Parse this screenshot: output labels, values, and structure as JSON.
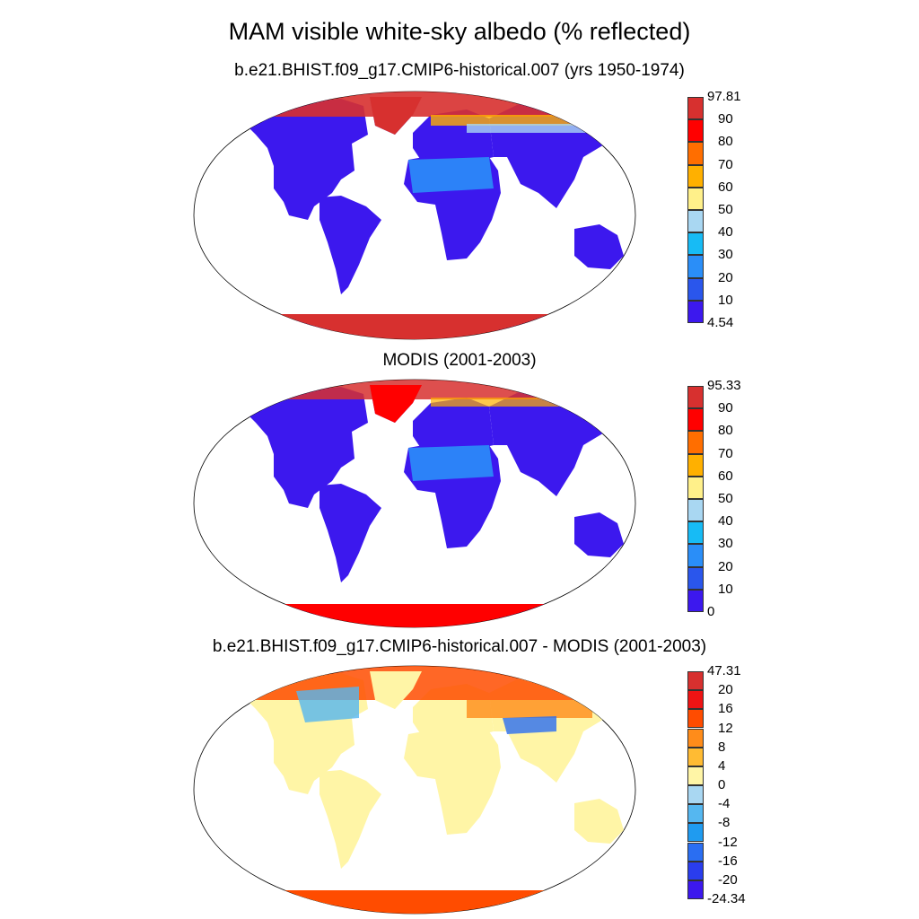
{
  "title": "MAM visible white-sky albedo (% reflected)",
  "panels": [
    {
      "id": "model",
      "title": "b.e21.BHIST.f09_g17.CMIP6-historical.007 (yrs 1950-1974)",
      "colorbar": {
        "labels": [
          "97.81",
          "90",
          "80",
          "70",
          "60",
          "50",
          "40",
          "30",
          "20",
          "10",
          "4.54"
        ],
        "colors": [
          "#d7302f",
          "#ff0000",
          "#ff6e00",
          "#ffb000",
          "#fff08a",
          "#a9d7f2",
          "#17bbf5",
          "#2a8ef8",
          "#2a56ec",
          "#3c18ee"
        ]
      }
    },
    {
      "id": "obs",
      "title": "MODIS (2001-2003)",
      "colorbar": {
        "labels": [
          "95.33",
          "90",
          "80",
          "70",
          "60",
          "50",
          "40",
          "30",
          "20",
          "10",
          "0"
        ],
        "colors": [
          "#d7302f",
          "#ff0000",
          "#ff6e00",
          "#ffb000",
          "#fff08a",
          "#a9d7f2",
          "#17bbf5",
          "#2a8ef8",
          "#2a56ec",
          "#3c18ee"
        ]
      }
    },
    {
      "id": "diff",
      "title": "b.e21.BHIST.f09_g17.CMIP6-historical.007 - MODIS (2001-2003)",
      "colorbar": {
        "labels": [
          "47.31",
          "20",
          "16",
          "12",
          "8",
          "4",
          "0",
          "-4",
          "-8",
          "-12",
          "-16",
          "-20",
          "-24.34"
        ],
        "colors": [
          "#d7302f",
          "#ee1414",
          "#ff4c00",
          "#ff8c1a",
          "#ffbb33",
          "#fff5a6",
          "#a9d7f2",
          "#55b7f0",
          "#1f9bf0",
          "#2a6ef2",
          "#2a3ded",
          "#3c18ee"
        ]
      }
    }
  ]
}
